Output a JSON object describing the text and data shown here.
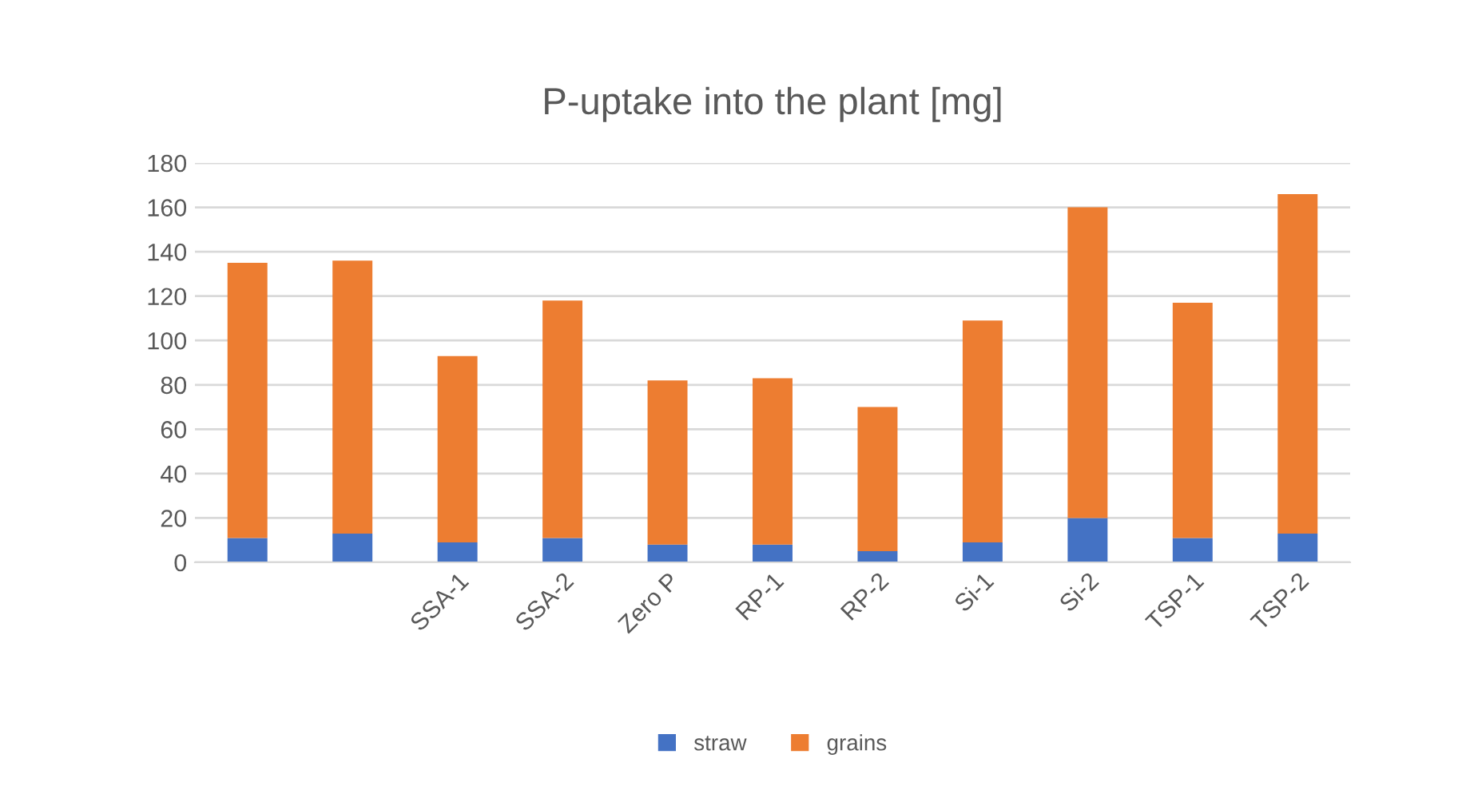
{
  "chart_data": {
    "type": "bar",
    "title": "P-uptake into the plant [mg]",
    "categories": [
      null,
      null,
      "SSA-1",
      "SSA-2",
      "Zero P",
      "RP-1",
      "RP-2",
      "Si-1",
      "Si-2",
      "TSP-1",
      "TSP-2"
    ],
    "stacked": true,
    "series": [
      {
        "name": "straw",
        "color": "#4472c4",
        "values": [
          11,
          13,
          9,
          11,
          8,
          8,
          5,
          9,
          20,
          11,
          13
        ]
      },
      {
        "name": "grains",
        "color": "#ed7d31",
        "values": [
          124,
          123,
          84,
          107,
          74,
          75,
          65,
          100,
          140,
          106,
          153
        ]
      }
    ],
    "ylim": [
      0,
      180
    ],
    "yticks": [
      0,
      20,
      40,
      60,
      80,
      100,
      120,
      140,
      160,
      180
    ],
    "grid": "y",
    "legend": "bottom"
  }
}
